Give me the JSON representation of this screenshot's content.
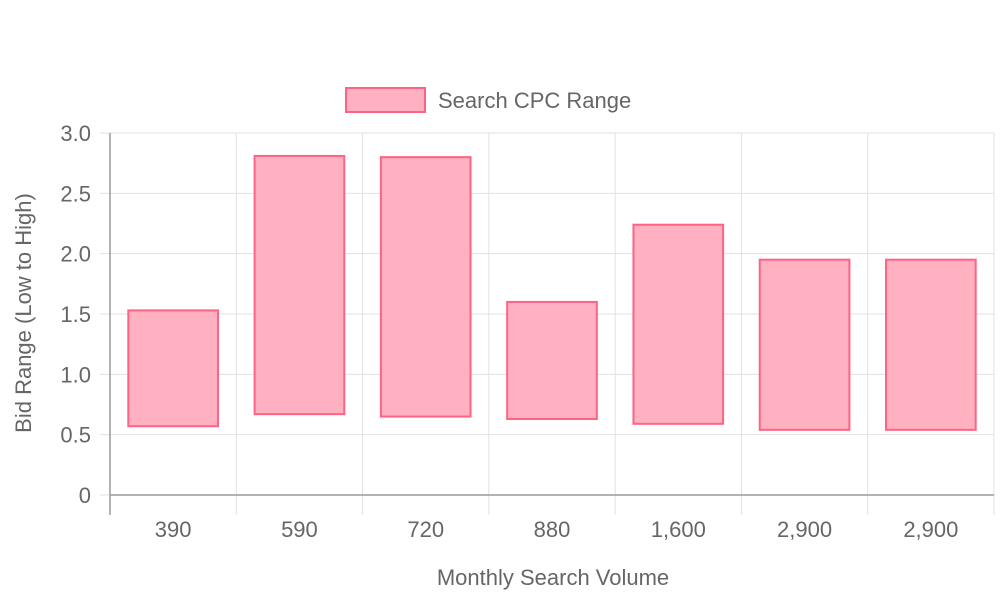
{
  "chart_data": {
    "type": "bar",
    "title": "",
    "xlabel": "Monthly Search Volume",
    "ylabel": "Bid Range (Low to High)",
    "categories": [
      "390",
      "590",
      "720",
      "880",
      "1,600",
      "2,900",
      "2,900"
    ],
    "series": [
      {
        "name": "Search CPC Range",
        "ranges": [
          [
            0.57,
            1.53
          ],
          [
            0.67,
            2.81
          ],
          [
            0.65,
            2.8
          ],
          [
            0.63,
            1.6
          ],
          [
            0.59,
            2.24
          ],
          [
            0.54,
            1.95
          ],
          [
            0.54,
            1.95
          ]
        ]
      }
    ],
    "ylim": [
      0,
      3.0
    ],
    "y_ticks": [
      "0",
      "0.5",
      "1.0",
      "1.5",
      "2.0",
      "2.5",
      "3.0"
    ],
    "y_tick_values": [
      0,
      0.5,
      1.0,
      1.5,
      2.0,
      2.5,
      3.0
    ],
    "grid": true,
    "legend_position": "top",
    "colors": {
      "fill": "#ffb0c1",
      "stroke": "#ff6384"
    }
  }
}
